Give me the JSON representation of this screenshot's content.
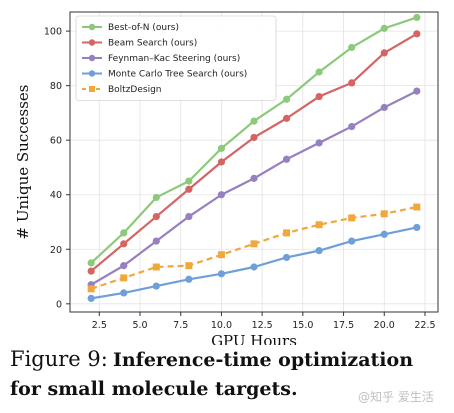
{
  "chart_data": {
    "type": "line",
    "xlabel": "GPU Hours",
    "ylabel": "# Unique Successes",
    "x": [
      2,
      4,
      6,
      8,
      10,
      12,
      14,
      16,
      18,
      20,
      22
    ],
    "xticks": [
      2.5,
      5.0,
      7.5,
      10.0,
      12.5,
      15.0,
      17.5,
      20.0,
      22.5
    ],
    "xtick_labels": [
      "2.5",
      "5.0",
      "7.5",
      "10.0",
      "12.5",
      "15.0",
      "17.5",
      "20.0",
      "22.5"
    ],
    "yticks": [
      0,
      20,
      40,
      60,
      80,
      100
    ],
    "xlim": [
      0.7,
      23.3
    ],
    "ylim": [
      -3,
      107
    ],
    "grid": true,
    "legend_position": "top-left",
    "series": [
      {
        "name": "Best-of-N (ours)",
        "color": "#8dc97b",
        "marker": "circle",
        "dashed": false,
        "values": [
          15,
          26,
          39,
          45,
          57,
          67,
          75,
          85,
          94,
          101,
          105
        ]
      },
      {
        "name": "Beam Search (ours)",
        "color": "#d56464",
        "marker": "circle",
        "dashed": false,
        "values": [
          12,
          22,
          32,
          42,
          52,
          61,
          68,
          76,
          81,
          92,
          99
        ]
      },
      {
        "name": "Feynman–Kac Steering (ours)",
        "color": "#9680c0",
        "marker": "circle",
        "dashed": false,
        "values": [
          7,
          14,
          23,
          32,
          40,
          46,
          53,
          59,
          65,
          72,
          78
        ]
      },
      {
        "name": "Monte Carlo Tree Search (ours)",
        "color": "#6f9fd8",
        "marker": "circle",
        "dashed": false,
        "values": [
          2,
          4,
          6.5,
          9,
          11,
          13.5,
          17,
          19.5,
          23,
          25.5,
          28
        ]
      },
      {
        "name": "BoltzDesign",
        "color": "#f0a83c",
        "marker": "square",
        "dashed": true,
        "values": [
          5.5,
          9.5,
          13.5,
          14,
          18,
          22,
          26,
          29,
          31.5,
          33,
          35.5
        ]
      }
    ]
  },
  "caption": {
    "lead": "Figure 9:",
    "bold_text": "Inference-time optimization for small molecule targets."
  },
  "watermark": "@知乎 爱生活"
}
